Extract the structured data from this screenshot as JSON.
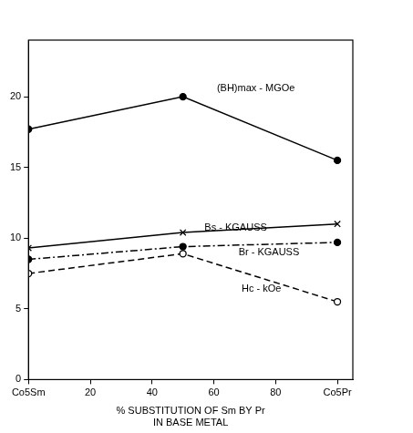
{
  "chart_data": {
    "type": "line",
    "x_label": [
      "% SUBSTITUTION OF Sm BY Pr",
      "IN BASE METAL"
    ],
    "x": [
      0,
      50,
      100
    ],
    "xlim": [
      0,
      105
    ],
    "xticks": [
      {
        "value": 0,
        "label": "Co5Sm"
      },
      20,
      40,
      60,
      80,
      {
        "value": 100,
        "label": "Co5Pr"
      }
    ],
    "ylim": [
      0,
      24
    ],
    "yticks": [
      0,
      5,
      10,
      15,
      20
    ],
    "grid": false,
    "series": [
      {
        "name": "(BH)max - MGOe",
        "color": "#000000",
        "values": [
          17.7,
          20.0,
          15.5
        ],
        "marker": "filled_circle",
        "line_style": "solid"
      },
      {
        "name": "Bs - KGAUSS",
        "color": "#000000",
        "values": [
          9.3,
          10.4,
          11.0
        ],
        "marker": "x",
        "line_style": "solid"
      },
      {
        "name": "Br - KGAUSS",
        "color": "#000000",
        "values": [
          8.5,
          9.4,
          9.7
        ],
        "marker": "filled_circle",
        "line_style": "dashdot"
      },
      {
        "name": "Hc - kOe",
        "color": "#000000",
        "values": [
          7.5,
          8.9,
          5.5
        ],
        "marker": "open_circle",
        "line_style": "dashed"
      }
    ]
  }
}
